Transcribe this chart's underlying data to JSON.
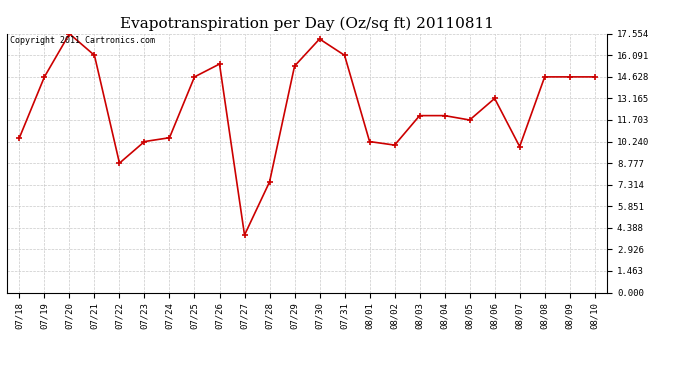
{
  "title": "Evapotranspiration per Day (Oz/sq ft) 20110811",
  "copyright_text": "Copyright 2011 Cartronics.com",
  "x_labels": [
    "07/18",
    "07/19",
    "07/20",
    "07/21",
    "07/22",
    "07/23",
    "07/24",
    "07/25",
    "07/26",
    "07/27",
    "07/28",
    "07/29",
    "07/30",
    "07/31",
    "08/01",
    "08/02",
    "08/03",
    "08/04",
    "08/05",
    "08/06",
    "08/07",
    "08/08",
    "08/09",
    "08/10"
  ],
  "y_values": [
    10.5,
    14.628,
    17.554,
    16.091,
    8.777,
    10.24,
    10.5,
    14.628,
    15.5,
    3.9,
    7.5,
    15.36,
    17.2,
    16.091,
    10.24,
    10.0,
    12.0,
    12.0,
    11.703,
    13.165,
    9.9,
    14.628,
    14.628,
    14.628
  ],
  "line_color": "#cc0000",
  "marker": "+",
  "marker_color": "#cc0000",
  "marker_size": 5,
  "bg_color": "#ffffff",
  "grid_color": "#bbbbbb",
  "yticks": [
    0.0,
    1.463,
    2.926,
    4.388,
    5.851,
    7.314,
    8.777,
    10.24,
    11.703,
    13.165,
    14.628,
    16.091,
    17.554
  ],
  "ymin": 0.0,
  "ymax": 17.554,
  "title_fontsize": 11,
  "copyright_fontsize": 6,
  "tick_fontsize": 6.5
}
